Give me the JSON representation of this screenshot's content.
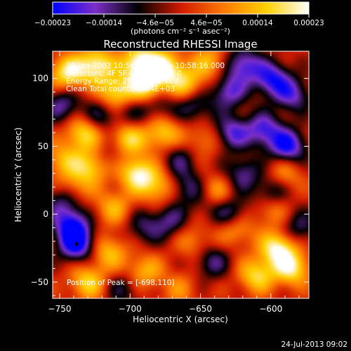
{
  "chart_data": {
    "type": "heatmap",
    "title": "Reconstructed RHESSI Image",
    "xlabel": "Heliocentric X (arcsec)",
    "ylabel": "Heliocentric Y (arcsec)",
    "xlim": [
      -755,
      -573
    ],
    "ylim": [
      -62,
      120
    ],
    "x_ticks": [
      {
        "value": -750,
        "label": "−750"
      },
      {
        "value": -700,
        "label": "−700"
      },
      {
        "value": -650,
        "label": "−650"
      },
      {
        "value": -600,
        "label": "−600"
      }
    ],
    "y_ticks": [
      {
        "value": -50,
        "label": "−50"
      },
      {
        "value": 0,
        "label": "0"
      },
      {
        "value": 50,
        "label": "50"
      },
      {
        "value": 100,
        "label": "100"
      }
    ],
    "colorbar": {
      "range": [
        -0.00023,
        0.00023
      ],
      "tick_labels": [
        "−0.00023",
        "−0.00014",
        "−4.6e−05",
        "4.6e−05",
        "0.00014",
        "0.00023"
      ],
      "unit_label": "(photons cm⁻² s⁻¹ asec⁻²)",
      "colors": [
        "#0000ff",
        "#7b2fc8",
        "#000000",
        "#d01a00",
        "#ff7a00",
        "#ffd000",
        "#ffffff"
      ]
    },
    "annotations": [
      "29-Jan-2002 10:56:32.000 to 10:58:16.000",
      "Detectors: 4F 5F 6F 7F 8F, All 0",
      "Energy Range: 25.0 - 50.0 keV",
      "Clean    Total counts: 3.84E+03"
    ],
    "peak_label": "Position of Peak = [-698,110]",
    "peak_marker": {
      "x": -738,
      "y": -22
    },
    "blobs": [
      {
        "x": -744,
        "y": 104,
        "v": 0.0002
      },
      {
        "x": -724,
        "y": 110,
        "v": 0.00021
      },
      {
        "x": -710,
        "y": 90,
        "v": 0.00019
      },
      {
        "x": -693,
        "y": 112,
        "v": 0.00023
      },
      {
        "x": -688,
        "y": 95,
        "v": 0.00022
      },
      {
        "x": -675,
        "y": 108,
        "v": 0.0002
      },
      {
        "x": -660,
        "y": 95,
        "v": 0.00016
      },
      {
        "x": -643,
        "y": 112,
        "v": 0.00013
      },
      {
        "x": -733,
        "y": 60,
        "v": 0.00018
      },
      {
        "x": -728,
        "y": 35,
        "v": 0.00016
      },
      {
        "x": -702,
        "y": 55,
        "v": 0.00018
      },
      {
        "x": -695,
        "y": 30,
        "v": 0.00021
      },
      {
        "x": -677,
        "y": 60,
        "v": 0.00016
      },
      {
        "x": -680,
        "y": 20,
        "v": 0.00014
      },
      {
        "x": -748,
        "y": 40,
        "v": 0.00012
      },
      {
        "x": -740,
        "y": 20,
        "v": 0.0001
      },
      {
        "x": -712,
        "y": 5,
        "v": 0.00012
      },
      {
        "x": -715,
        "y": -28,
        "v": 0.00014
      },
      {
        "x": -730,
        "y": -50,
        "v": 0.00016
      },
      {
        "x": -690,
        "y": -42,
        "v": 0.00013
      },
      {
        "x": -655,
        "y": -20,
        "v": 9e-05
      },
      {
        "x": -665,
        "y": -55,
        "v": 8e-05
      },
      {
        "x": -595,
        "y": -25,
        "v": 0.00022
      },
      {
        "x": -585,
        "y": -40,
        "v": 0.00019
      },
      {
        "x": -610,
        "y": -45,
        "v": 0.00017
      },
      {
        "x": -625,
        "y": -10,
        "v": 0.00014
      },
      {
        "x": -600,
        "y": 5,
        "v": 0.00012
      },
      {
        "x": -590,
        "y": 30,
        "v": 0.0001
      },
      {
        "x": -640,
        "y": 15,
        "v": 0.00015
      },
      {
        "x": -648,
        "y": 55,
        "v": 9e-05
      },
      {
        "x": -700,
        "y": 75,
        "v": -8e-05
      },
      {
        "x": -665,
        "y": 40,
        "v": -0.0001
      },
      {
        "x": -722,
        "y": 72,
        "v": -0.00011
      },
      {
        "x": -712,
        "y": 45,
        "v": -7e-05
      },
      {
        "x": -748,
        "y": 80,
        "v": -0.00014
      },
      {
        "x": -748,
        "y": 10,
        "v": -0.00012
      },
      {
        "x": -738,
        "y": -22,
        "v": -0.00023
      },
      {
        "x": -742,
        "y": -8,
        "v": -0.0002
      },
      {
        "x": -690,
        "y": -10,
        "v": -0.0001
      },
      {
        "x": -705,
        "y": -55,
        "v": -9e-05
      },
      {
        "x": -672,
        "y": -5,
        "v": -0.00012
      },
      {
        "x": -655,
        "y": 80,
        "v": -0.00013
      },
      {
        "x": -630,
        "y": 90,
        "v": -0.00016
      },
      {
        "x": -620,
        "y": 110,
        "v": -0.00018
      },
      {
        "x": -600,
        "y": 100,
        "v": -0.0002
      },
      {
        "x": -585,
        "y": 88,
        "v": -0.00016
      },
      {
        "x": -628,
        "y": 60,
        "v": -0.00017
      },
      {
        "x": -605,
        "y": 62,
        "v": -0.00018
      },
      {
        "x": -588,
        "y": 50,
        "v": -0.00022
      },
      {
        "x": -620,
        "y": 30,
        "v": -0.00013
      },
      {
        "x": -645,
        "y": 10,
        "v": -9e-05
      },
      {
        "x": -628,
        "y": 0,
        "v": -0.00016
      },
      {
        "x": -600,
        "y": 15,
        "v": -0.00014
      },
      {
        "x": -642,
        "y": -35,
        "v": -0.00012
      },
      {
        "x": -580,
        "y": -10,
        "v": -0.00011
      },
      {
        "x": -680,
        "y": 80,
        "v": -0.0001
      },
      {
        "x": -660,
        "y": 20,
        "v": -0.00011
      }
    ]
  },
  "footer": {
    "timestamp": "24-Jul-2013 09:02"
  }
}
